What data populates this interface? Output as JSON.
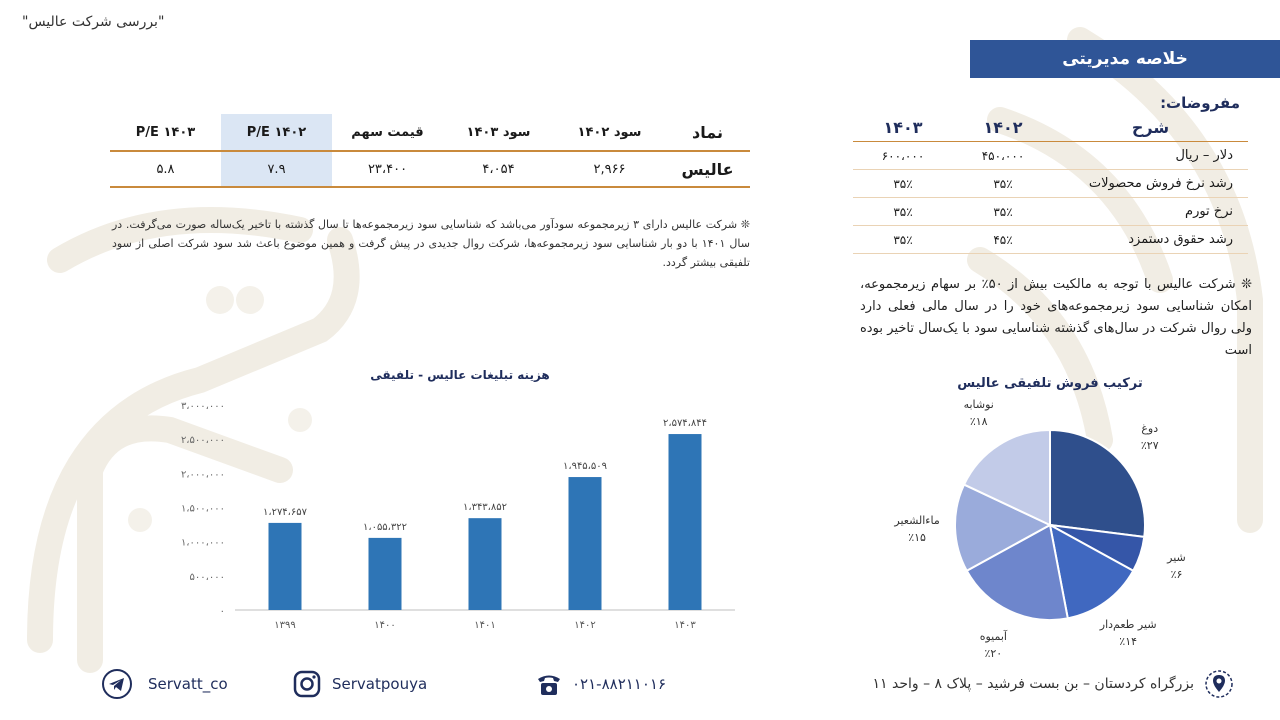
{
  "page_title": "\"بررسی شرکت عالیس\"",
  "summary_header": "خلاصه مدیریتی",
  "assumptions": {
    "label": "مفروضات:",
    "headers": [
      "شرح",
      "۱۴۰۲",
      "۱۴۰۳"
    ],
    "rows": [
      {
        "item": "دلار – ریال",
        "y1402": "۴۵۰،۰۰۰",
        "y1403": "۶۰۰،۰۰۰"
      },
      {
        "item": "رشد نرخ فروش محصولات",
        "y1402": "۳۵٪",
        "y1403": "۳۵٪"
      },
      {
        "item": "نرخ تورم",
        "y1402": "۳۵٪",
        "y1403": "۳۵٪"
      },
      {
        "item": "رشد حقوق دستمزد",
        "y1402": "۴۵٪",
        "y1403": "۳۵٪"
      }
    ]
  },
  "right_note": "❊ شرکت عالیس با توجه به مالکیت بیش از ۵۰٪ بر سهام زیرمجموعه، امکان شناسایی سود زیرمجموعه‌های خود را در سال مالی فعلی دارد ولی روال شرکت در سال‌های گذشته شناسایی سود با یک‌سال تاخیر بوده است",
  "main_table": {
    "headers": [
      "نماد",
      "سود ۱۴۰۲",
      "سود ۱۴۰۳",
      "قیمت سهم",
      "۱۴۰۲ P/E",
      "۱۴۰۳ P/E"
    ],
    "row": [
      "عالیس",
      "۲,۹۶۶",
      "۴،۰۵۴",
      "۲۳،۴۰۰",
      "۷.۹",
      "۵.۸"
    ]
  },
  "left_note": "❊ شرکت عالیس دارای ۳ زیرمجموعه سودآور می‌باشد که شناسایی سود زیرمجموعه‌ها تا سال گذشته با تاخیر یک‌ساله صورت می‌گرفت. در سال ۱۴۰۱ با دو بار شناسایی سود زیرمجموعه‌ها، شرکت روال جدیدی در پیش گرفت و همین موضوع باعث شد سود شرکت اصلی از سود تلفیقی بیشتر گردد.",
  "chart_data": [
    {
      "type": "bar",
      "title": "هزینه تبلیغات عالیس - تلفیقی",
      "categories": [
        "۱۳۹۹",
        "۱۴۰۰",
        "۱۴۰۱",
        "۱۴۰۲",
        "۱۴۰۳"
      ],
      "values": [
        1274657,
        1055322,
        1343852,
        1945509,
        2574844
      ],
      "value_labels": [
        "۱،۲۷۴،۶۵۷",
        "۱،۰۵۵،۳۲۲",
        "۱،۳۴۳،۸۵۲",
        "۱،۹۴۵،۵۰۹",
        "۲،۵۷۴،۸۴۴"
      ],
      "ylim": [
        0,
        3000000
      ],
      "yticks": [
        0,
        500000,
        1000000,
        1500000,
        2000000,
        2500000,
        3000000
      ],
      "ytick_labels": [
        "۰",
        "۵۰۰،۰۰۰",
        "۱،۰۰۰،۰۰۰",
        "۱،۵۰۰،۰۰۰",
        "۲،۰۰۰،۰۰۰",
        "۲،۵۰۰،۰۰۰",
        "۳،۰۰۰،۰۰۰"
      ],
      "color": "#2e75b6",
      "grid": false
    },
    {
      "type": "pie",
      "title": "ترکیب فروش تلفیقی عالیس",
      "slices": [
        {
          "name": "دوغ",
          "value": 27,
          "label": "٪۲۷",
          "color": "#2f4f8c"
        },
        {
          "name": "شیر",
          "value": 6,
          "label": "٪۶",
          "color": "#3556a8"
        },
        {
          "name": "شیر طعم‌دار",
          "value": 14,
          "label": "٪۱۴",
          "color": "#4068c0"
        },
        {
          "name": "آبمیوه",
          "value": 20,
          "label": "٪۲۰",
          "color": "#6e86cc"
        },
        {
          "name": "ماءالشعیر",
          "value": 15,
          "label": "٪۱۵",
          "color": "#9aabdb"
        },
        {
          "name": "نوشابه",
          "value": 18,
          "label": "٪۱۸",
          "color": "#c2cbe8"
        }
      ]
    }
  ],
  "footer": {
    "telegram": "Servatt_co",
    "instagram": "Servatpouya",
    "phone": "۰۲۱-۸۸۲۱۱۰۱۶",
    "address": "بزرگراه کردستان – بن بست فرشید – پلاک ۸ – واحد ۱۱"
  }
}
